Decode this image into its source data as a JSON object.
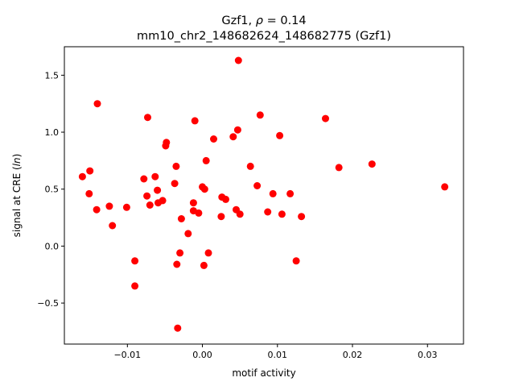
{
  "chart_data": {
    "type": "scatter",
    "title_line1_prefix": "Gzf1, ",
    "title_line1_rho": "ρ",
    "title_line1_suffix": " = 0.14",
    "title_line2": "mm10_chr2_148682624_148682775 (Gzf1)",
    "xlabel": "motif activity",
    "ylabel_prefix": "signal at CRE (",
    "ylabel_italic": "ln",
    "ylabel_suffix": ")",
    "xlim": [
      -0.0184,
      0.0348
    ],
    "ylim": [
      -0.86,
      1.75
    ],
    "xticks": [
      {
        "value": -0.01,
        "label": "−0.01"
      },
      {
        "value": 0.0,
        "label": "0.00"
      },
      {
        "value": 0.01,
        "label": "0.01"
      },
      {
        "value": 0.02,
        "label": "0.02"
      },
      {
        "value": 0.03,
        "label": "0.03"
      }
    ],
    "yticks": [
      {
        "value": -0.5,
        "label": "−0.5"
      },
      {
        "value": 0.0,
        "label": "0.0"
      },
      {
        "value": 0.5,
        "label": "0.5"
      },
      {
        "value": 1.0,
        "label": "1.0"
      },
      {
        "value": 1.5,
        "label": "1.5"
      }
    ],
    "marker_color": "#ff0000",
    "grid": false,
    "points": [
      [
        0.0048,
        1.63
      ],
      [
        -0.014,
        1.25
      ],
      [
        0.0077,
        1.15
      ],
      [
        -0.0073,
        1.13
      ],
      [
        0.0164,
        1.12
      ],
      [
        -0.001,
        1.1
      ],
      [
        0.0047,
        1.02
      ],
      [
        0.0103,
        0.97
      ],
      [
        0.0041,
        0.96
      ],
      [
        0.0015,
        0.94
      ],
      [
        -0.0048,
        0.91
      ],
      [
        -0.0049,
        0.88
      ],
      [
        0.0005,
        0.75
      ],
      [
        0.0226,
        0.72
      ],
      [
        0.0064,
        0.7
      ],
      [
        -0.0035,
        0.7
      ],
      [
        0.0182,
        0.69
      ],
      [
        -0.016,
        0.61
      ],
      [
        -0.0063,
        0.61
      ],
      [
        -0.0078,
        0.59
      ],
      [
        -0.0037,
        0.55
      ],
      [
        0.0073,
        0.53
      ],
      [
        0.0323,
        0.52
      ],
      [
        0.0,
        0.52
      ],
      [
        0.0003,
        0.5
      ],
      [
        -0.006,
        0.49
      ],
      [
        0.0094,
        0.46
      ],
      [
        0.0117,
        0.46
      ],
      [
        -0.015,
        0.66
      ],
      [
        -0.0151,
        0.46
      ],
      [
        -0.0074,
        0.44
      ],
      [
        0.0026,
        0.43
      ],
      [
        0.0031,
        0.41
      ],
      [
        -0.0053,
        0.4
      ],
      [
        -0.0012,
        0.38
      ],
      [
        -0.0059,
        0.38
      ],
      [
        -0.007,
        0.36
      ],
      [
        -0.0124,
        0.35
      ],
      [
        -0.0101,
        0.34
      ],
      [
        -0.0141,
        0.32
      ],
      [
        0.0045,
        0.32
      ],
      [
        -0.0012,
        0.31
      ],
      [
        0.0087,
        0.3
      ],
      [
        -0.0005,
        0.29
      ],
      [
        0.0106,
        0.28
      ],
      [
        0.005,
        0.28
      ],
      [
        0.0025,
        0.26
      ],
      [
        0.0132,
        0.26
      ],
      [
        -0.0028,
        0.24
      ],
      [
        -0.012,
        0.18
      ],
      [
        -0.0019,
        0.11
      ],
      [
        0.0008,
        -0.06
      ],
      [
        -0.003,
        -0.06
      ],
      [
        -0.009,
        -0.13
      ],
      [
        0.0125,
        -0.13
      ],
      [
        -0.0034,
        -0.16
      ],
      [
        0.0002,
        -0.17
      ],
      [
        -0.009,
        -0.35
      ],
      [
        -0.0033,
        -0.72
      ]
    ]
  }
}
